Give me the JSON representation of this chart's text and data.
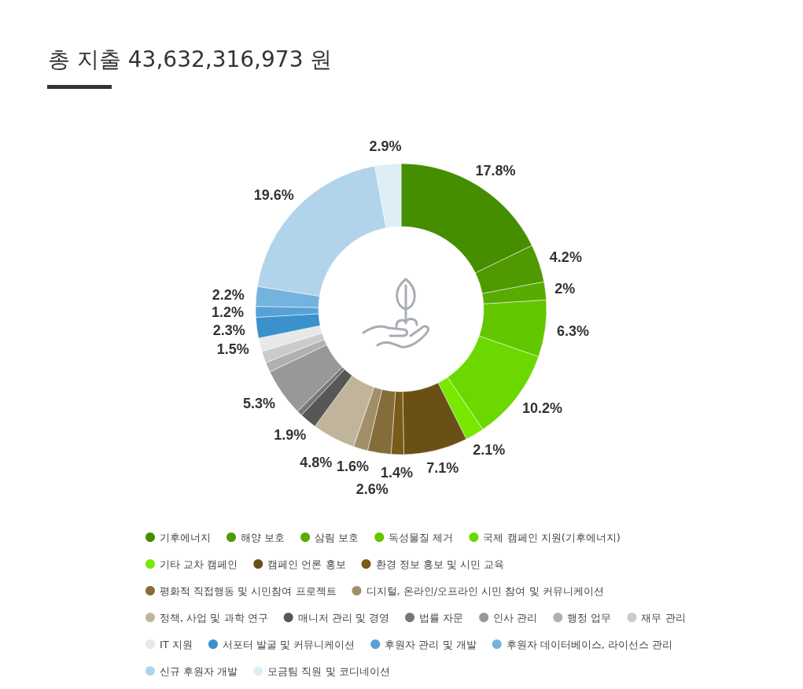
{
  "chart_data": {
    "type": "donut",
    "title": "총 지출 43,632,316,973 원",
    "categories": [
      "기후에너지",
      "해양 보호",
      "삼림 보호",
      "독성물질 제거",
      "국제 캠페인 지원(기후에너지)",
      "기타 교차 캠페인",
      "캠페인 언론 홍보",
      "환경 정보 홍보 및 시민 교육",
      "평화적 직접행동 및 시민참여 프로젝트",
      "디지털, 온라인/오프라인 시민 참여 및 커뮤니케이션",
      "정책, 사업 및 과학 연구",
      "매니저 관리 및 경영",
      "법률 자문",
      "인사 관리",
      "행정 업무",
      "재무 관리",
      "IT 지원",
      "서포터 발굴 및 커뮤니케이션",
      "후원자 관리 및 개발",
      "후원자 데이터베이스, 라이선스 관리",
      "신규 후원자 개발",
      "모금팀 직원 및 코디네이션"
    ],
    "values": [
      17.8,
      4.2,
      2,
      6.3,
      10.2,
      2.1,
      7.1,
      1.4,
      2.6,
      1.6,
      4.8,
      1.9,
      0.6,
      5.3,
      1.1,
      1.3,
      1.5,
      2.3,
      1.2,
      2.2,
      19.6,
      2.9
    ],
    "value_labels": [
      "17.8%",
      "4.2%",
      "2%",
      "6.3%",
      "10.2%",
      "2.1%",
      "7.1%",
      "1.4%",
      "2.6%",
      "1.6%",
      "4.8%",
      "1.9%",
      null,
      "5.3%",
      null,
      null,
      "1.5%",
      "2.3%",
      "1.2%",
      "2.2%",
      "19.6%",
      "2.9%"
    ],
    "colors": [
      "#458e00",
      "#4e9a00",
      "#58ab00",
      "#62c600",
      "#6bd900",
      "#78e800",
      "#6b5016",
      "#7a5a18",
      "#856d39",
      "#a28f68",
      "#c0b59b",
      "#575757",
      "#777777",
      "#989898",
      "#b0b0b0",
      "#cbcbcb",
      "#e8e8e8",
      "#3a91cc",
      "#56a2d6",
      "#75b3df",
      "#b1d4eb",
      "#dfedf7"
    ],
    "legend": "bottom"
  }
}
